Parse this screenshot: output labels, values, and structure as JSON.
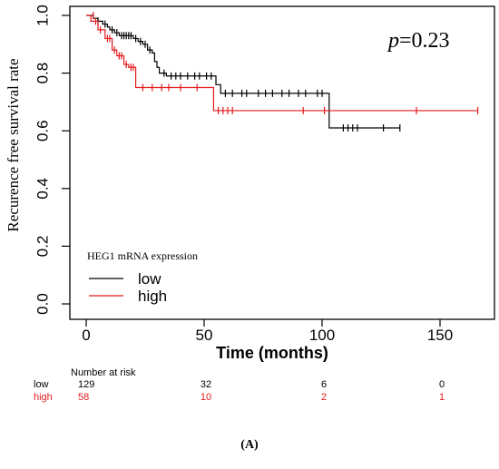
{
  "chart_data": {
    "type": "line",
    "subtype": "kaplan-meier",
    "ylabel": "Recurence free survival rate",
    "xlabel": "Time (months)",
    "xlim": [
      0,
      170
    ],
    "ylim": [
      0,
      1.0
    ],
    "x_ticks": [
      0,
      50,
      100,
      150
    ],
    "y_ticks": [
      0.0,
      0.2,
      0.4,
      0.6,
      0.8,
      1.0
    ],
    "y_tick_labels": [
      "0.0",
      "0.2",
      "0.4",
      "0.6",
      "0.8",
      "1.0"
    ],
    "grid": false,
    "annotation": {
      "p_symbol": "p",
      "p_value": "=0.23"
    },
    "legend": {
      "title": "HEG1 mRNA expression",
      "placement": "bottom-left"
    },
    "series": [
      {
        "name": "low",
        "color": "#000000",
        "steps": [
          [
            0,
            1.0
          ],
          [
            3,
            0.99
          ],
          [
            5,
            0.98
          ],
          [
            7,
            0.97
          ],
          [
            9,
            0.96
          ],
          [
            10,
            0.95
          ],
          [
            12,
            0.94
          ],
          [
            14,
            0.93
          ],
          [
            20,
            0.92
          ],
          [
            22,
            0.91
          ],
          [
            24,
            0.9
          ],
          [
            26,
            0.88
          ],
          [
            28,
            0.87
          ],
          [
            29,
            0.84
          ],
          [
            30,
            0.82
          ],
          [
            31,
            0.8
          ],
          [
            34,
            0.79
          ],
          [
            55,
            0.76
          ],
          [
            57,
            0.73
          ],
          [
            103,
            0.61
          ],
          [
            133,
            0.61
          ]
        ],
        "censors": [
          [
            5,
            0.98
          ],
          [
            8,
            0.97
          ],
          [
            11,
            0.95
          ],
          [
            13,
            0.94
          ],
          [
            15,
            0.93
          ],
          [
            16,
            0.93
          ],
          [
            17,
            0.93
          ],
          [
            18,
            0.93
          ],
          [
            19,
            0.93
          ],
          [
            21,
            0.92
          ],
          [
            23,
            0.91
          ],
          [
            25,
            0.9
          ],
          [
            27,
            0.88
          ],
          [
            33,
            0.8
          ],
          [
            36,
            0.79
          ],
          [
            38,
            0.79
          ],
          [
            40,
            0.79
          ],
          [
            43,
            0.79
          ],
          [
            46,
            0.79
          ],
          [
            48,
            0.79
          ],
          [
            51,
            0.79
          ],
          [
            53,
            0.79
          ],
          [
            59,
            0.73
          ],
          [
            62,
            0.73
          ],
          [
            66,
            0.73
          ],
          [
            68,
            0.73
          ],
          [
            73,
            0.73
          ],
          [
            76,
            0.73
          ],
          [
            79,
            0.73
          ],
          [
            83,
            0.73
          ],
          [
            86,
            0.73
          ],
          [
            90,
            0.73
          ],
          [
            93,
            0.73
          ],
          [
            98,
            0.73
          ],
          [
            100,
            0.73
          ],
          [
            109,
            0.61
          ],
          [
            111,
            0.61
          ],
          [
            113,
            0.61
          ],
          [
            115,
            0.61
          ],
          [
            126,
            0.61
          ],
          [
            133,
            0.61
          ]
        ]
      },
      {
        "name": "high",
        "color": "#e31a1c",
        "steps": [
          [
            0,
            1.0
          ],
          [
            2,
            0.98
          ],
          [
            5,
            0.95
          ],
          [
            8,
            0.92
          ],
          [
            11,
            0.88
          ],
          [
            13,
            0.86
          ],
          [
            16,
            0.83
          ],
          [
            18,
            0.82
          ],
          [
            21,
            0.75
          ],
          [
            53,
            0.75
          ],
          [
            54,
            0.67
          ],
          [
            166,
            0.67
          ]
        ],
        "censors": [
          [
            3,
            1.0
          ],
          [
            4,
            0.98
          ],
          [
            6,
            0.95
          ],
          [
            9,
            0.92
          ],
          [
            10,
            0.92
          ],
          [
            12,
            0.88
          ],
          [
            14,
            0.86
          ],
          [
            15,
            0.86
          ],
          [
            17,
            0.83
          ],
          [
            19,
            0.82
          ],
          [
            20,
            0.82
          ],
          [
            24,
            0.75
          ],
          [
            28,
            0.75
          ],
          [
            32,
            0.75
          ],
          [
            35,
            0.75
          ],
          [
            40,
            0.75
          ],
          [
            47,
            0.75
          ],
          [
            56,
            0.67
          ],
          [
            58,
            0.67
          ],
          [
            60,
            0.67
          ],
          [
            62,
            0.67
          ],
          [
            92,
            0.67
          ],
          [
            101,
            0.67
          ],
          [
            140,
            0.67
          ],
          [
            166,
            0.67
          ]
        ]
      }
    ]
  },
  "risk_table": {
    "title": "Number at risk",
    "times": [
      0,
      50,
      100,
      150
    ],
    "rows": [
      {
        "label": "low",
        "color": "#000000",
        "values": [
          "129",
          "32",
          "6",
          "0"
        ]
      },
      {
        "label": "high",
        "color": "#e31a1c",
        "values": [
          "58",
          "10",
          "2",
          "1"
        ]
      }
    ]
  },
  "panel_label": "(A)"
}
